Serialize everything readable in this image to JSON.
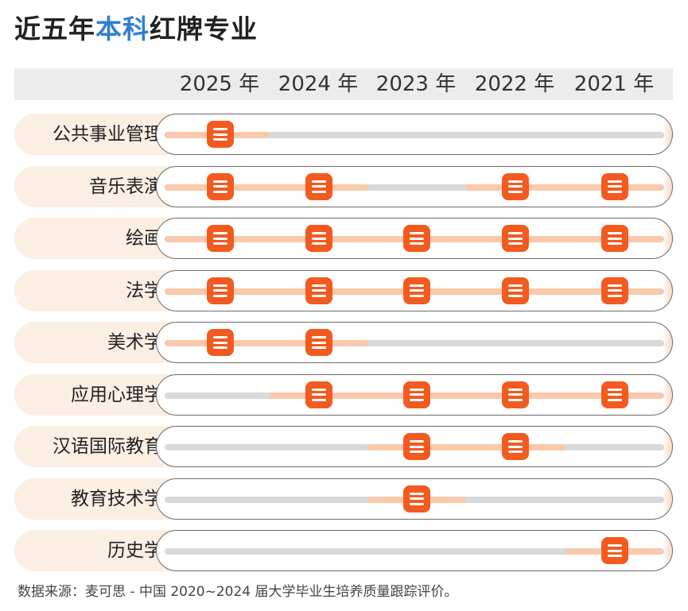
{
  "title": {
    "part1": "近五年",
    "part2": "本科",
    "part3": "红牌专业"
  },
  "chart_data": {
    "type": "table",
    "title": "近五年本科红牌专业",
    "columns": [
      "2025 年",
      "2024 年",
      "2023 年",
      "2022 年",
      "2021 年"
    ],
    "rows": [
      {
        "label": "公共事业管理",
        "red_card": [
          true,
          false,
          false,
          false,
          false
        ]
      },
      {
        "label": "音乐表演",
        "red_card": [
          true,
          true,
          false,
          true,
          true
        ]
      },
      {
        "label": "绘画",
        "red_card": [
          true,
          true,
          true,
          true,
          true
        ]
      },
      {
        "label": "法学",
        "red_card": [
          true,
          true,
          true,
          true,
          true
        ]
      },
      {
        "label": "美术学",
        "red_card": [
          true,
          true,
          false,
          false,
          false
        ]
      },
      {
        "label": "应用心理学",
        "red_card": [
          false,
          true,
          true,
          true,
          true
        ]
      },
      {
        "label": "汉语国际教育",
        "red_card": [
          false,
          false,
          true,
          true,
          false
        ]
      },
      {
        "label": "教育技术学",
        "red_card": [
          false,
          false,
          true,
          false,
          false
        ]
      },
      {
        "label": "历史学",
        "red_card": [
          false,
          false,
          false,
          false,
          true
        ]
      }
    ],
    "marker_icon": "list-icon",
    "colors": {
      "title_text": "#222222",
      "title_accent": "#2f7fd1",
      "marker": "#f25a1f",
      "highlight_segment": "#f8c9aa",
      "inactive_track": "#d9d9d9",
      "row_label_bg": "#fbeee3",
      "header_band": "#ececec"
    }
  },
  "source": "数据来源：麦可思 - 中国 2020~2024 届大学毕业生培养质量跟踪评价。"
}
